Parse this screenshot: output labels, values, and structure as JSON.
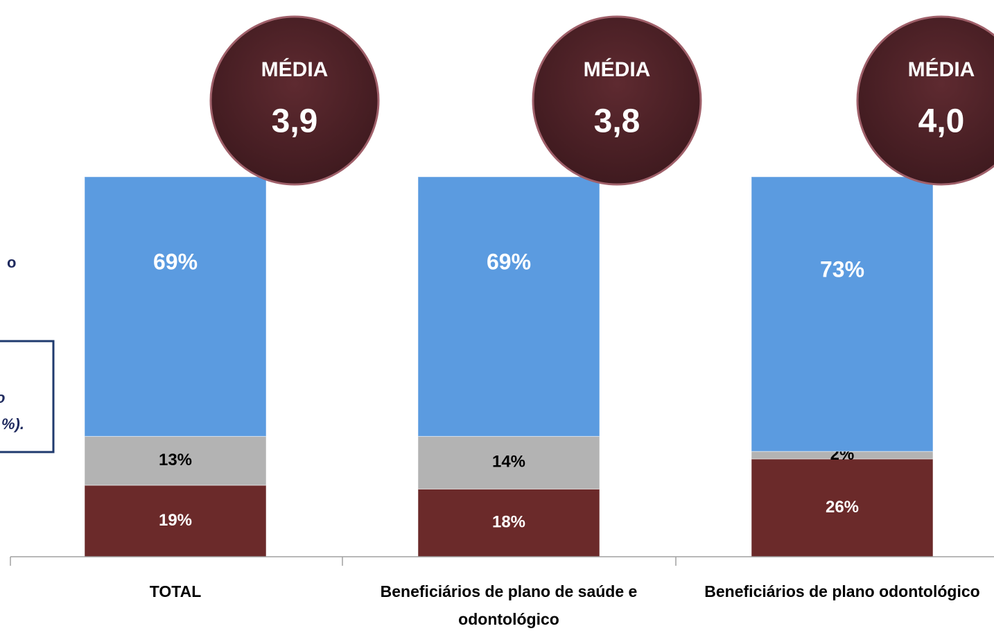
{
  "chart_data": {
    "type": "stacked_bar",
    "categories": [
      "TOTAL",
      "Beneficiários de plano de saúde e odontológico",
      "Beneficiários de plano odontológico"
    ],
    "series": [
      {
        "color": "#6b2a2a",
        "values": [
          19,
          18,
          26
        ],
        "value_labels": [
          "19%",
          "18%",
          "26%"
        ]
      },
      {
        "color": "#b3b3b3",
        "values": [
          13,
          14,
          2
        ],
        "value_labels": [
          "13%",
          "14%",
          "2%"
        ]
      },
      {
        "color": "#5b9be0",
        "values": [
          69,
          69,
          73
        ],
        "value_labels": [
          "69%",
          "69%",
          "73%"
        ]
      }
    ],
    "ylim": [
      0,
      101
    ],
    "average_label": "MÉDIA",
    "averages": [
      3.9,
      3.8,
      4.0
    ],
    "average_labels": [
      "3,9",
      "3,8",
      "4,0"
    ],
    "annotations": [
      "o",
      "o",
      "%)."
    ]
  }
}
